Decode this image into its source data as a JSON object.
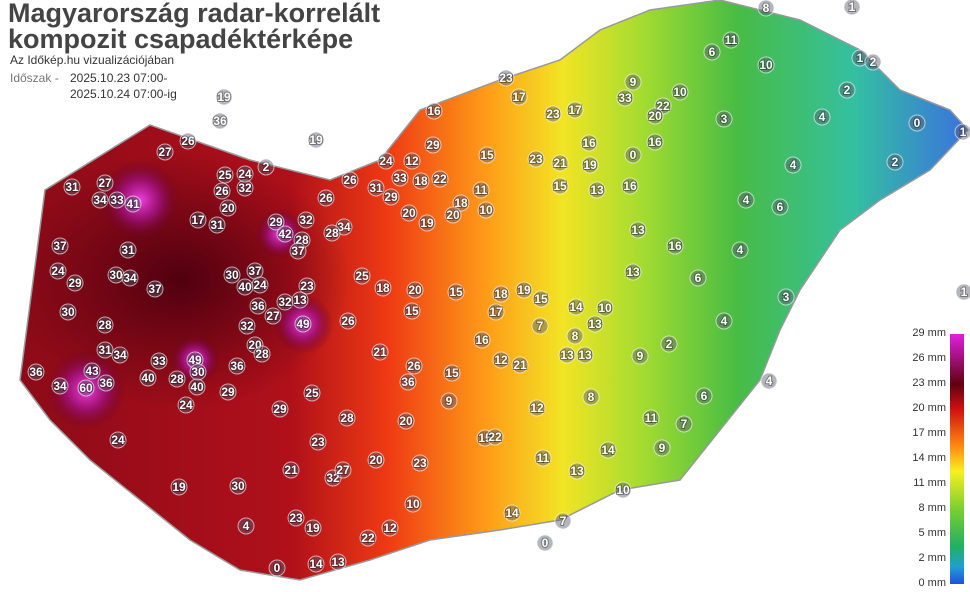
{
  "title": [
    "Magyarország radar-korrelált",
    "kompozit csapadéktérképe"
  ],
  "subtitle": "Az Időkép.hu vizualizációjában",
  "period_label": "Időszak -",
  "period": [
    "2025.10.23 07:00-",
    "2025.10.24 07:00-ig"
  ],
  "legend": {
    "labels": [
      "29 mm",
      "26 mm",
      "23 mm",
      "20 mm",
      "17 mm",
      "14 mm",
      "11 mm",
      "8 mm",
      "5 mm",
      "2 mm",
      "0 mm"
    ]
  },
  "stations": [
    27,
    26,
    31,
    27,
    34,
    33,
    41,
    25,
    26,
    32,
    24,
    20,
    17,
    31,
    29,
    32,
    42,
    28,
    37,
    26,
    34,
    28,
    31,
    30,
    34,
    37,
    24,
    29,
    30,
    28,
    30,
    37,
    40,
    24,
    36,
    32,
    13,
    23,
    49,
    27,
    32,
    26,
    31,
    34,
    33,
    49,
    43,
    60,
    36,
    34,
    40,
    30,
    40,
    28,
    24,
    29,
    20,
    28,
    36,
    21,
    26,
    36,
    29,
    25,
    28,
    23,
    24,
    20,
    23,
    30,
    19,
    21,
    32,
    27,
    20,
    23,
    19,
    22,
    4,
    0,
    14,
    13,
    12,
    10,
    29,
    24,
    12,
    33,
    31,
    26,
    29,
    18,
    22,
    20,
    19,
    18,
    20,
    16,
    23,
    17,
    23,
    17,
    33,
    22,
    20,
    0,
    16,
    9,
    10,
    11,
    6,
    10,
    1,
    8,
    1,
    2,
    2,
    0,
    2,
    3,
    4,
    4,
    4,
    6,
    4,
    6,
    3,
    4,
    4,
    6,
    7,
    9,
    11,
    2,
    9,
    15,
    23,
    21,
    19,
    13,
    16,
    15,
    11,
    10,
    16,
    13,
    13,
    16,
    10,
    14,
    13,
    8,
    13,
    13,
    7,
    18,
    17,
    19,
    15,
    16,
    12,
    15,
    12,
    9,
    15,
    22,
    11,
    13,
    14,
    8,
    10,
    14,
    0,
    7,
    15,
    20,
    18,
    25,
    15,
    21,
    19,
    36,
    19,
    2,
    37,
    36,
    1,
    1
  ]
}
